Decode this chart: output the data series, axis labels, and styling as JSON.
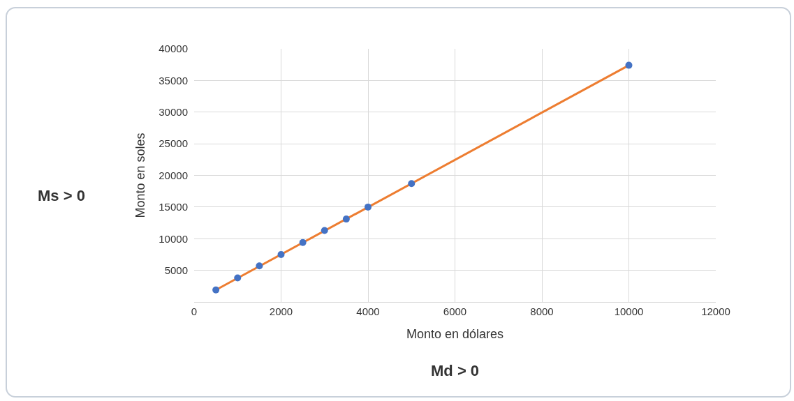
{
  "chart_data": {
    "type": "scatter",
    "xlabel": "Monto en dólares",
    "ylabel": "Monto en soles",
    "annotations": [
      "Ms > 0",
      "Md > 0"
    ],
    "series": [
      {
        "type": "line",
        "color": "#ed7d31",
        "x": [
          500,
          10000
        ],
        "values": [
          1900,
          37400
        ],
        "marker": "none"
      },
      {
        "color": "#4472c4",
        "x": [
          500,
          1000,
          1500,
          2000,
          2500,
          3000,
          3500,
          4000,
          5000,
          10000
        ],
        "values": [
          1900,
          3800,
          5700,
          7500,
          9400,
          11300,
          13100,
          15000,
          18700,
          37400
        ],
        "marker": "circle"
      }
    ],
    "xlim": [
      0,
      12000
    ],
    "xticks": [
      0,
      2000,
      4000,
      6000,
      8000,
      10000,
      12000
    ],
    "ylim": [
      0,
      40000
    ],
    "yticks": [
      {
        "value": 0,
        "label": null
      },
      5000,
      10000,
      15000,
      20000,
      25000,
      30000,
      35000,
      40000
    ],
    "grid": true
  }
}
